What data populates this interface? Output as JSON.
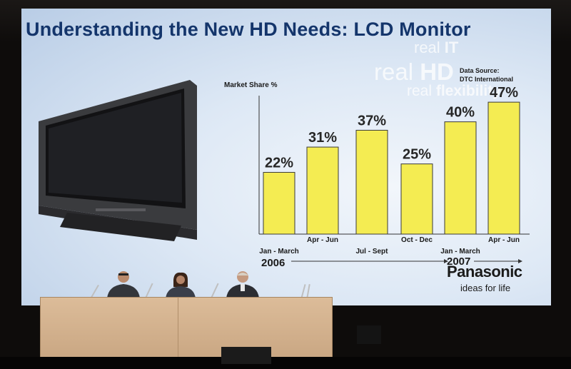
{
  "slide": {
    "title": "Understanding the New HD Needs: LCD Monitor",
    "watermark": {
      "line1_a": "real ",
      "line1_b": "IT",
      "line2_a": "real ",
      "line2_b": "HD",
      "line3_a": "real ",
      "line3_b": "flexibility"
    },
    "data_source_line1": "Data Source:",
    "data_source_line2": "DTC International",
    "brand": "Panasonic",
    "tagline": "ideas for life",
    "colors": {
      "title": "#14356b",
      "bar_fill": "#f4ec52",
      "bar_stroke": "#3a3a3a"
    }
  },
  "chart_data": {
    "type": "bar",
    "ylabel": "Market Share %",
    "categories": [
      "Jan - March",
      "Apr - Jun",
      "Jul - Sept",
      "Oct - Dec",
      "Jan - March",
      "Apr - Jun"
    ],
    "values": [
      22,
      31,
      37,
      25,
      40,
      47
    ],
    "value_labels": [
      "22%",
      "31%",
      "37%",
      "25%",
      "40%",
      "47%"
    ],
    "year_groups": [
      {
        "label": "2006",
        "categories": [
          "Jan - March",
          "Apr - Jun",
          "Jul - Sept",
          "Oct - Dec"
        ]
      },
      {
        "label": "2007",
        "categories": [
          "Jan - March",
          "Apr - Jun"
        ]
      }
    ],
    "ylim": [
      0,
      60
    ],
    "grid": false,
    "legend": "none"
  }
}
